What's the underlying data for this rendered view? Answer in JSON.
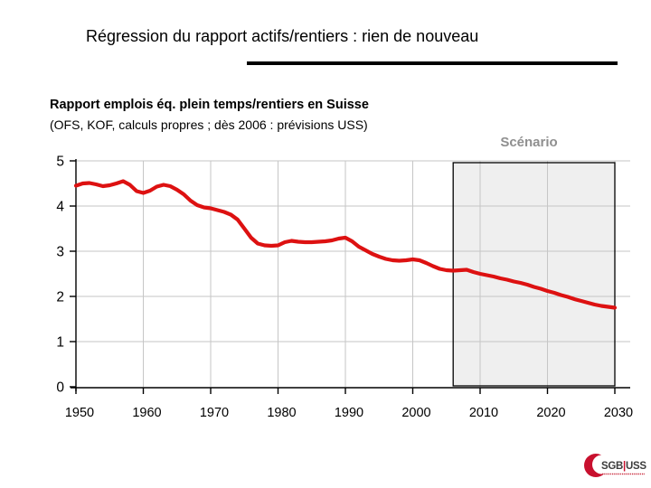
{
  "slide": {
    "title": "Régression du rapport actifs/rentiers : rien de nouveau"
  },
  "chart_data": {
    "type": "line",
    "title": "Rapport emplois éq. plein temps/rentiers en Suisse",
    "subtitle": "(OFS, KOF, calculs propres ; dès 2006 : prévisions USS)",
    "xlabel": "",
    "ylabel": "",
    "xlim": [
      1950,
      2032
    ],
    "ylim": [
      0,
      5
    ],
    "x_ticks": [
      1950,
      1960,
      1970,
      1980,
      1990,
      2000,
      2010,
      2020,
      2030
    ],
    "y_ticks": [
      0,
      1,
      2,
      3,
      4,
      5
    ],
    "grid": true,
    "legend": "none",
    "line_color": "#dd1111",
    "line_width": 4.2,
    "grid_color": "#c6c6c6",
    "axis_color": "#000000",
    "scenario_region": {
      "label": "Scénario",
      "label_color": "#8f8f8f",
      "x_start": 2006,
      "x_end": 2030,
      "fill": "#efefef",
      "border": "#000000"
    },
    "series": [
      {
        "name": "Rapport emplois éq. plein temps/rentiers en Suisse",
        "x": [
          1950,
          1951,
          1952,
          1953,
          1954,
          1955,
          1956,
          1957,
          1958,
          1959,
          1960,
          1961,
          1962,
          1963,
          1964,
          1965,
          1966,
          1967,
          1968,
          1969,
          1970,
          1971,
          1972,
          1973,
          1974,
          1975,
          1976,
          1977,
          1978,
          1979,
          1980,
          1981,
          1982,
          1983,
          1984,
          1985,
          1986,
          1987,
          1988,
          1989,
          1990,
          1991,
          1992,
          1993,
          1994,
          1995,
          1996,
          1997,
          1998,
          1999,
          2000,
          2001,
          2002,
          2003,
          2004,
          2005,
          2006,
          2007,
          2008,
          2009,
          2010,
          2011,
          2012,
          2013,
          2014,
          2015,
          2016,
          2017,
          2018,
          2019,
          2020,
          2021,
          2022,
          2023,
          2024,
          2025,
          2026,
          2027,
          2028,
          2029,
          2030
        ],
        "y": [
          4.45,
          4.5,
          4.51,
          4.48,
          4.44,
          4.46,
          4.5,
          4.55,
          4.47,
          4.33,
          4.29,
          4.34,
          4.43,
          4.47,
          4.44,
          4.36,
          4.26,
          4.12,
          4.02,
          3.97,
          3.95,
          3.91,
          3.87,
          3.81,
          3.7,
          3.5,
          3.3,
          3.17,
          3.13,
          3.12,
          3.13,
          3.2,
          3.23,
          3.21,
          3.2,
          3.2,
          3.21,
          3.22,
          3.24,
          3.28,
          3.3,
          3.22,
          3.1,
          3.02,
          2.94,
          2.88,
          2.83,
          2.8,
          2.79,
          2.8,
          2.82,
          2.8,
          2.74,
          2.67,
          2.61,
          2.58,
          2.57,
          2.58,
          2.59,
          2.54,
          2.5,
          2.47,
          2.44,
          2.4,
          2.37,
          2.33,
          2.3,
          2.26,
          2.21,
          2.17,
          2.12,
          2.08,
          2.03,
          1.99,
          1.94,
          1.9,
          1.86,
          1.82,
          1.79,
          1.77,
          1.75
        ]
      }
    ]
  },
  "logo": {
    "left": "SGB",
    "separator": "|",
    "right": "USS",
    "accent": "#c8102e",
    "text_color": "#3c3c3c"
  }
}
